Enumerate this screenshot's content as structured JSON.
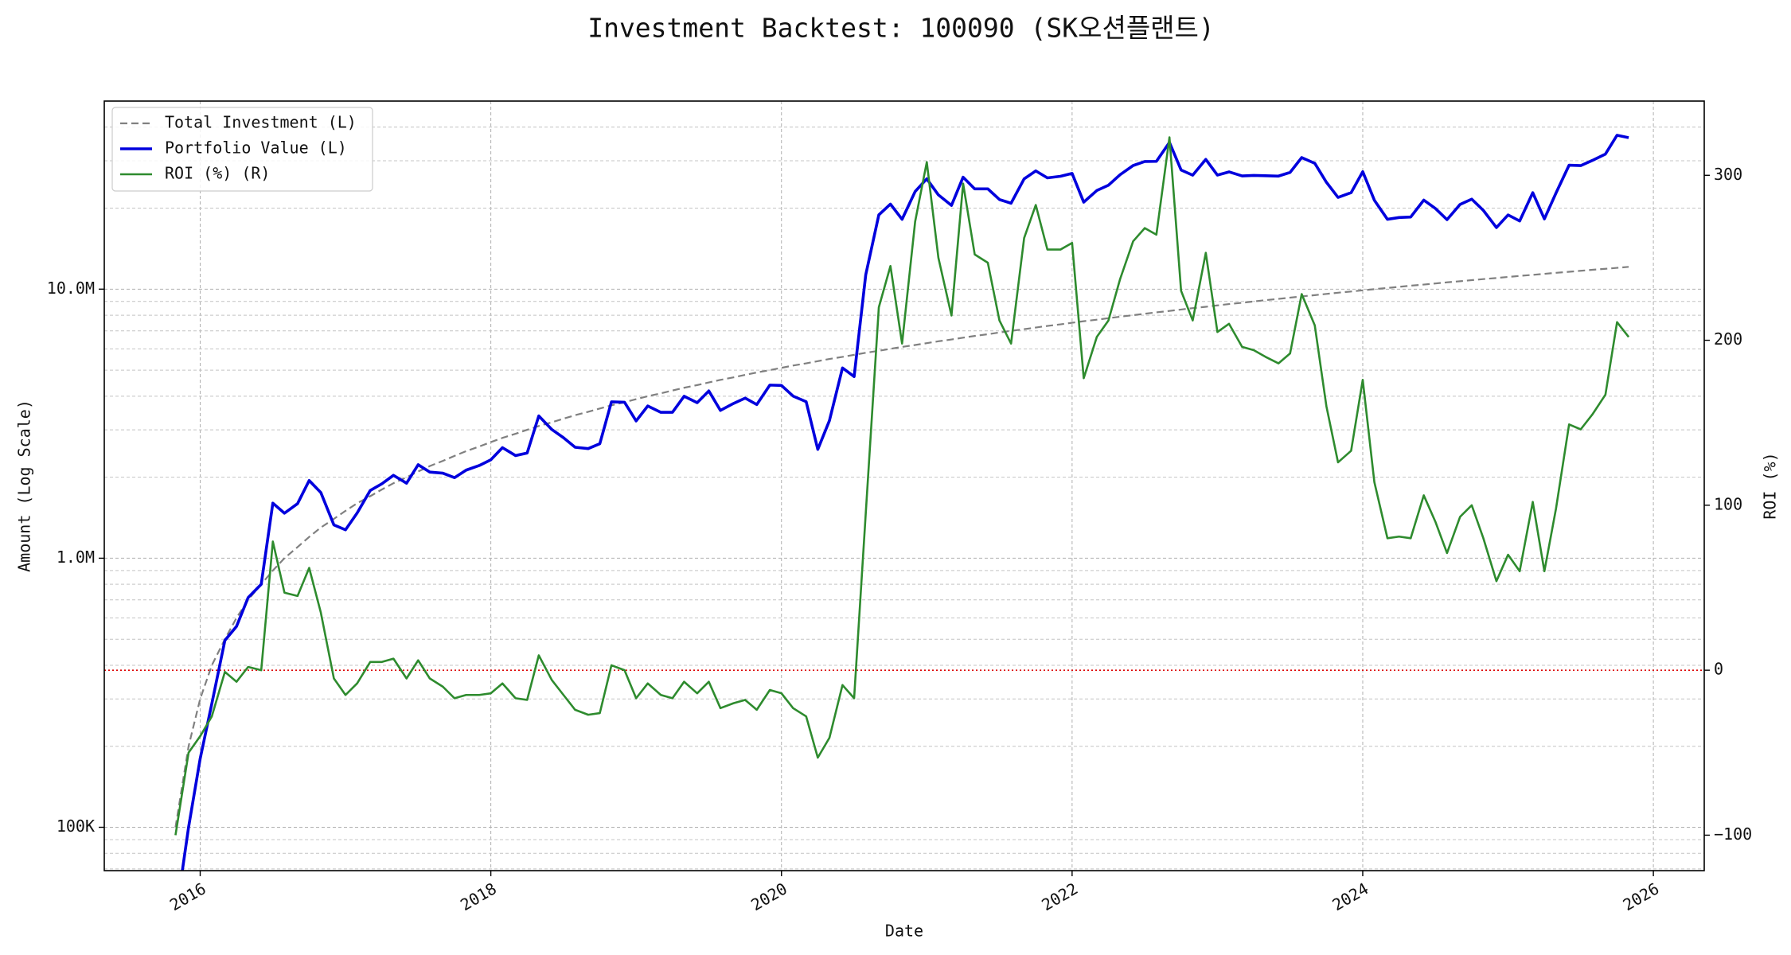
{
  "chart_data": {
    "type": "line",
    "title": "Investment Backtest: 100090 (SK오션플랜트)",
    "x_label": "Date",
    "y_label": "Amount (Log Scale)",
    "y2_label": "ROI (%)",
    "x": [
      2015.83,
      2015.92,
      2016,
      2016.08,
      2016.17,
      2016.25,
      2016.33,
      2016.42,
      2016.5,
      2016.58,
      2016.67,
      2016.75,
      2016.83,
      2016.92,
      2017,
      2017.08,
      2017.17,
      2017.25,
      2017.33,
      2017.42,
      2017.5,
      2017.58,
      2017.67,
      2017.75,
      2017.83,
      2017.92,
      2018,
      2018.08,
      2018.17,
      2018.25,
      2018.33,
      2018.42,
      2018.5,
      2018.58,
      2018.67,
      2018.75,
      2018.83,
      2018.92,
      2019,
      2019.08,
      2019.17,
      2019.25,
      2019.33,
      2019.42,
      2019.5,
      2019.58,
      2019.67,
      2019.75,
      2019.83,
      2019.92,
      2020,
      2020.08,
      2020.17,
      2020.25,
      2020.33,
      2020.42,
      2020.5,
      2020.58,
      2020.67,
      2020.75,
      2020.83,
      2020.92,
      2021,
      2021.08,
      2021.17,
      2021.25,
      2021.33,
      2021.42,
      2021.5,
      2021.58,
      2021.67,
      2021.75,
      2021.83,
      2021.92,
      2022,
      2022.08,
      2022.17,
      2022.25,
      2022.33,
      2022.42,
      2022.5,
      2022.58,
      2022.67,
      2022.75,
      2022.83,
      2022.92,
      2023,
      2023.08,
      2023.17,
      2023.25,
      2023.33,
      2023.42,
      2023.5,
      2023.58,
      2023.67,
      2023.75,
      2023.83,
      2023.92,
      2024,
      2024.08,
      2024.17,
      2024.25,
      2024.33,
      2024.42,
      2024.5,
      2024.58,
      2024.67,
      2024.75,
      2024.83,
      2024.92,
      2025,
      2025.08,
      2025.17,
      2025.25,
      2025.33,
      2025.42,
      2025.5,
      2025.58,
      2025.67,
      2025.75,
      2025.83
    ],
    "series": [
      {
        "name": "Total Investment (L)",
        "color": "#808080",
        "dash": "dashed",
        "width": 2.2,
        "values": [
          100000,
          200000,
          300000,
          400000,
          500000,
          600000,
          700000,
          800000,
          900000,
          1000000,
          1100000,
          1200000,
          1300000,
          1400000,
          1500000,
          1600000,
          1700000,
          1800000,
          1900000,
          2000000,
          2100000,
          2200000,
          2300000,
          2400000,
          2500000,
          2600000,
          2700000,
          2800000,
          2900000,
          3000000,
          3100000,
          3200000,
          3300000,
          3400000,
          3500000,
          3600000,
          3700000,
          3800000,
          3900000,
          4000000,
          4100000,
          4200000,
          4300000,
          4400000,
          4500000,
          4600000,
          4700000,
          4800000,
          4900000,
          5000000,
          5100000,
          5200000,
          5300000,
          5400000,
          5500000,
          5600000,
          5700000,
          5800000,
          5900000,
          6000000,
          6100000,
          6200000,
          6300000,
          6400000,
          6500000,
          6600000,
          6700000,
          6800000,
          6900000,
          7000000,
          7100000,
          7200000,
          7300000,
          7400000,
          7500000,
          7600000,
          7700000,
          7800000,
          7900000,
          8000000,
          8100000,
          8200000,
          8300000,
          8400000,
          8500000,
          8600000,
          8700000,
          8800000,
          8900000,
          9000000,
          9100000,
          9200000,
          9300000,
          9400000,
          9500000,
          9600000,
          9700000,
          9800000,
          9900000,
          10000000,
          10100000,
          10200000,
          10300000,
          10400000,
          10500000,
          10600000,
          10700000,
          10800000,
          10900000,
          11000000,
          11100000,
          11200000,
          11300000,
          11400000,
          11500000,
          11600000,
          11700000,
          11800000,
          11900000,
          12000000,
          12100000
        ]
      },
      {
        "name": "Portfolio Value (L)",
        "color": "#0000dd",
        "dash": "solid",
        "width": 3.6,
        "values": [
          0,
          100000,
          180000,
          288000,
          495000,
          558000,
          714000,
          800000,
          1602000,
          1470000,
          1595000,
          1944000,
          1755000,
          1330000,
          1275000,
          1472000,
          1785000,
          1890000,
          2033000,
          1900000,
          2226000,
          2090000,
          2070000,
          1992000,
          2125000,
          2210000,
          2322000,
          2576000,
          2407000,
          2460000,
          3379000,
          3008000,
          2805000,
          2584000,
          2555000,
          2664000,
          3811000,
          3800000,
          3237000,
          3680000,
          3485000,
          3486000,
          3999000,
          3784000,
          4185000,
          3542000,
          3760000,
          3936000,
          3724000,
          4400000,
          4386000,
          4004000,
          3816000,
          2538000,
          3245000,
          5096000,
          4731000,
          11310000,
          18880000,
          20700000,
          18178000,
          23064000,
          25704000,
          22400000,
          20475000,
          26070000,
          23584000,
          23596000,
          21528000,
          20860000,
          25702000,
          27504000,
          25915000,
          26270000,
          26925000,
          21052000,
          23254000,
          24336000,
          26623000,
          28800000,
          29808000,
          29848000,
          35109000,
          27720000,
          26520000,
          30358000,
          26535000,
          27280000,
          26344000,
          26460000,
          26390000,
          26312000,
          27156000,
          30832000,
          29355000,
          24960000,
          21922000,
          22834000,
          27324000,
          21400000,
          18180000,
          18462000,
          18540000,
          21424000,
          19950000,
          18126000,
          20651000,
          21600000,
          19620000,
          16940000,
          18870000,
          17920000,
          22826000,
          18240000,
          22770000,
          28884000,
          28782000,
          30090000,
          31773000,
          37320000,
          36542000
        ]
      },
      {
        "name": "ROI (%) (R)",
        "color": "#2e8b2e",
        "dash": "solid",
        "width": 2.6,
        "axis": "y2",
        "values": [
          -100,
          -50,
          -40,
          -28,
          -1,
          -7,
          2,
          0,
          78,
          47,
          45,
          62,
          35,
          -5,
          -15,
          -8,
          5,
          5,
          7,
          -5,
          6,
          -5,
          -10,
          -17,
          -15,
          -15,
          -14,
          -8,
          -17,
          -18,
          9,
          -6,
          -15,
          -24,
          -27,
          -26,
          3,
          0,
          -17,
          -8,
          -15,
          -17,
          -7,
          -14,
          -7,
          -23,
          -20,
          -18,
          -24,
          -12,
          -14,
          -23,
          -28,
          -53,
          -41,
          -9,
          -17,
          95,
          220,
          245,
          198,
          272,
          308,
          250,
          215,
          295,
          252,
          247,
          212,
          198,
          262,
          282,
          255,
          255,
          259,
          177,
          202,
          212,
          237,
          260,
          268,
          264,
          323,
          230,
          212,
          253,
          205,
          210,
          196,
          194,
          190,
          186,
          192,
          228,
          209,
          160,
          126,
          133,
          176,
          114,
          80,
          81,
          80,
          106,
          90,
          71,
          93,
          100,
          80,
          54,
          70,
          60,
          102,
          60,
          98,
          149,
          146,
          155,
          167,
          211,
          202
        ]
      }
    ],
    "xlim": [
      2015.34,
      2026.35
    ],
    "xticks": [
      2016,
      2018,
      2020,
      2022,
      2024,
      2026
    ],
    "ylim": [
      69000,
      50000000
    ],
    "log_y": true,
    "minor_grid": true,
    "yticks": [
      {
        "value": 100000,
        "label": "100K"
      },
      {
        "value": 1000000,
        "label": "1.0M"
      },
      {
        "value": 10000000,
        "label": "10.0M"
      }
    ],
    "y2lim": [
      -121.5,
      345
    ],
    "y2ticks": [
      {
        "value": -100,
        "label": "−100"
      },
      0,
      100,
      200,
      300
    ],
    "y2_reference_line": 0,
    "reference_color": "#dd0000",
    "grid": true,
    "legend": "upper left",
    "y_color": "#0000cc",
    "y2_color": "#2e8b2e"
  }
}
